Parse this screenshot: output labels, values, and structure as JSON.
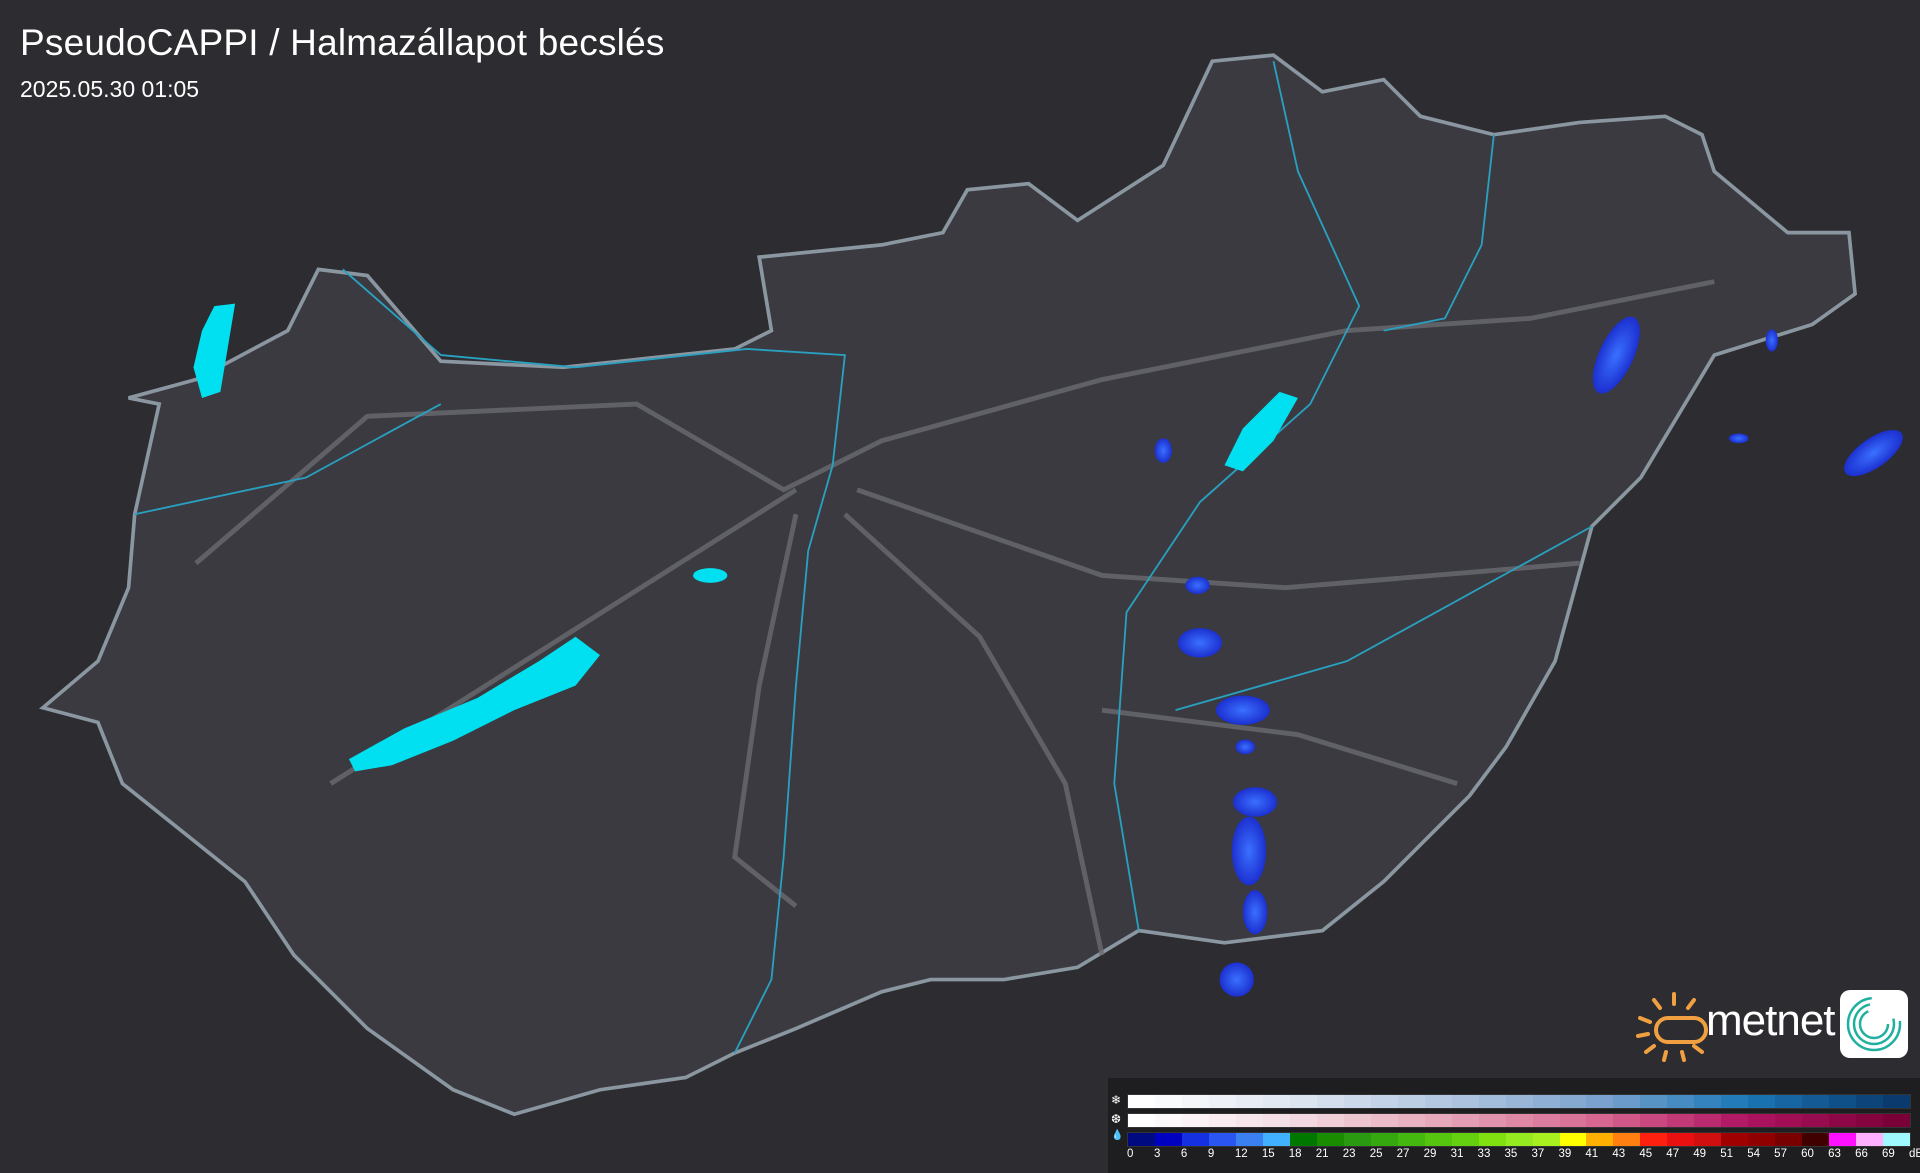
{
  "header": {
    "title": "PseudoCAPPI  / Halmazállapot becslés",
    "timestamp": "2025.05.30 01:05"
  },
  "logo": {
    "brand": "metnet",
    "sun_color": "#f0a040"
  },
  "legend": {
    "rows": [
      {
        "icon": "snowflake-icon",
        "glyph": "❄",
        "scale": [
          "#ffffff",
          "#dfe6f1",
          "#b3c7e0",
          "#7fa4cf",
          "#1c78b8",
          "#0a3a6e"
        ]
      },
      {
        "icon": "mixed-precip-icon",
        "glyph": "❆",
        "scale": [
          "#ffffff",
          "#f3dce3",
          "#e5a6ba",
          "#d86a92",
          "#b01462",
          "#7a0038"
        ]
      },
      {
        "icon": "raindrop-icon",
        "glyph": "💧",
        "colors": [
          "#000a80",
          "#0000c0",
          "#1530e0",
          "#2a55f0",
          "#3a80f0",
          "#40b0ff",
          "#007800",
          "#1a8c00",
          "#2a9a10",
          "#35a810",
          "#45b810",
          "#55c510",
          "#65d010",
          "#80e010",
          "#95ea20",
          "#a8f020",
          "#ffff00",
          "#ffb000",
          "#ff8010",
          "#ff2010",
          "#e81010",
          "#d01010",
          "#a00000",
          "#900000",
          "#780000",
          "#400000",
          "#ff10ff",
          "#ffb0ff",
          "#a0f8ff"
        ]
      }
    ],
    "labels": [
      "0",
      "3",
      "6",
      "9",
      "12",
      "15",
      "18",
      "21",
      "23",
      "25",
      "27",
      "29",
      "31",
      "33",
      "35",
      "37",
      "39",
      "41",
      "43",
      "45",
      "47",
      "49",
      "51",
      "54",
      "57",
      "60",
      "63",
      "66",
      "69"
    ],
    "unit": "dBZ"
  },
  "colors": {
    "lakes": "#00e0f0",
    "rivers": "#2aa0c0",
    "border": "#8a96a0",
    "roads": "#6a6a70"
  }
}
